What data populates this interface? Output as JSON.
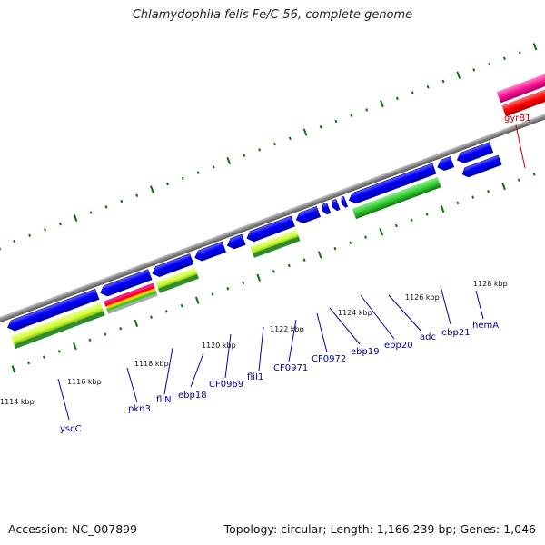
{
  "title": "Chlamydophila felis Fe/C-56, complete genome",
  "footer": {
    "accession": "Accession: NC_007899",
    "summary": "Topology: circular; Length: 1,166,239 bp; Genes: 1,046"
  },
  "colors": {
    "forward_gene": "#ff1493",
    "forward_cds": "#ff0000",
    "reverse_gene": "#0000ff",
    "reverse_cds_green": "#33cc33",
    "reverse_cds_lime": "#ccff33",
    "backbone": "#888888",
    "tick": "#007700",
    "gene_label": "#0000aa",
    "gene_label_forward": "#cc0000"
  },
  "scale_labels": [
    "1114 kbp",
    "1116 kbp",
    "1118 kbp",
    "1120 kbp",
    "1122 kbp",
    "1124 kbp",
    "1126 kbp",
    "1128 kbp"
  ],
  "gene_labels": [
    "gyrB1",
    "yscC",
    "pkn3",
    "fliN",
    "ebp18",
    "CF0969",
    "fliI1",
    "CF0971",
    "CF0972",
    "ebp19",
    "ebp20",
    "adc",
    "ebp21",
    "hemA"
  ]
}
